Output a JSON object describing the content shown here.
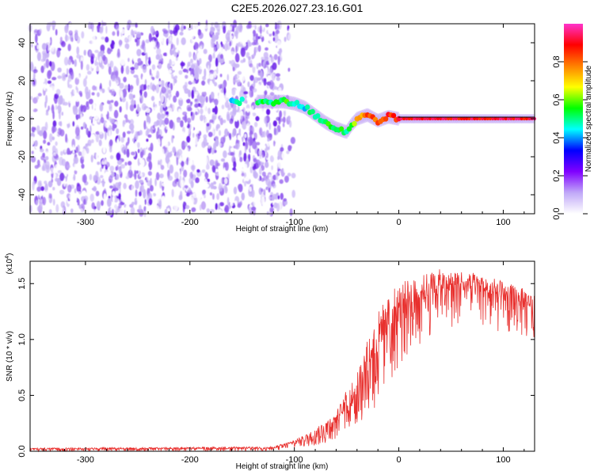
{
  "title": "C2E5.2026.027.23.16.G01",
  "chart_data": [
    {
      "type": "heatmap",
      "xlabel": "Height of straight line (km)",
      "ylabel": "Frequency (Hz)",
      "xlim": [
        -353,
        130
      ],
      "ylim": [
        -50,
        50
      ],
      "xticks": [
        -300,
        -200,
        -100,
        0,
        100
      ],
      "yticks": [
        -40,
        -20,
        0,
        20,
        40
      ],
      "xtick_labels": [
        "-300",
        "-200",
        "-100",
        "0",
        "100"
      ],
      "ytick_labels": [
        "-40",
        "-20",
        "0",
        "20",
        "40"
      ],
      "noise_region_x": [
        -353,
        -112
      ],
      "signal_track": [
        {
          "x": -160,
          "y": 9,
          "amp": 0.45
        },
        {
          "x": -130,
          "y": 9,
          "amp": 0.5
        },
        {
          "x": -110,
          "y": 9,
          "amp": 0.55
        },
        {
          "x": -100,
          "y": 8,
          "amp": 0.5
        },
        {
          "x": -90,
          "y": 6,
          "amp": 0.45
        },
        {
          "x": -80,
          "y": 2,
          "amp": 0.5
        },
        {
          "x": -70,
          "y": -2,
          "amp": 0.55
        },
        {
          "x": -60,
          "y": -5,
          "amp": 0.55
        },
        {
          "x": -50,
          "y": -7,
          "amp": 0.5
        },
        {
          "x": -45,
          "y": -3,
          "amp": 0.6
        },
        {
          "x": -40,
          "y": 0,
          "amp": 0.75
        },
        {
          "x": -30,
          "y": 2,
          "amp": 0.8
        },
        {
          "x": -20,
          "y": -1,
          "amp": 0.8
        },
        {
          "x": -10,
          "y": 1,
          "amp": 0.85
        },
        {
          "x": 0,
          "y": 0,
          "amp": 0.9
        },
        {
          "x": 130,
          "y": 0,
          "amp": 0.9
        }
      ],
      "colorbar": {
        "label": "Normalized spectral amplitude",
        "range": [
          0,
          1
        ],
        "ticks": [
          0.0,
          0.2,
          0.4,
          0.6,
          0.8
        ],
        "tick_labels": [
          "0.0",
          "0.2",
          "0.4",
          "0.6",
          "0.8"
        ],
        "colors": [
          "#ffffff",
          "#c0a8f8",
          "#8000ff",
          "#0000ff",
          "#00ffff",
          "#00ff00",
          "#ffff00",
          "#ff8000",
          "#ff0000",
          "#ff33cc"
        ]
      }
    },
    {
      "type": "line",
      "xlabel": "Height of straight line (km)",
      "ylabel": "SNR (10 * v/v)",
      "scale_label": "(x10",
      "scale_exponent": "4",
      "xlim": [
        -353,
        130
      ],
      "ylim": [
        0,
        1.7
      ],
      "xticks": [
        -300,
        -200,
        -100,
        0,
        100
      ],
      "yticks": [
        0.0,
        0.5,
        1.0,
        1.5
      ],
      "xtick_labels": [
        "-300",
        "-200",
        "-100",
        "0",
        "100"
      ],
      "ytick_labels": [
        "0.0",
        "0.5",
        "1.0",
        "1.5"
      ],
      "color": "#e8302e",
      "envelope": {
        "x": [
          -353,
          -120,
          -100,
          -80,
          -60,
          -50,
          -40,
          -30,
          -20,
          -10,
          0,
          20,
          40,
          60,
          80,
          100,
          130
        ],
        "low": [
          0.0,
          0.0,
          0.03,
          0.05,
          0.08,
          0.12,
          0.18,
          0.28,
          0.4,
          0.55,
          0.75,
          0.95,
          1.05,
          1.15,
          1.12,
          1.05,
          1.0
        ],
        "high": [
          0.03,
          0.04,
          0.1,
          0.2,
          0.35,
          0.55,
          0.7,
          1.0,
          1.25,
          1.4,
          1.5,
          1.58,
          1.63,
          1.62,
          1.58,
          1.52,
          1.42
        ]
      }
    }
  ]
}
